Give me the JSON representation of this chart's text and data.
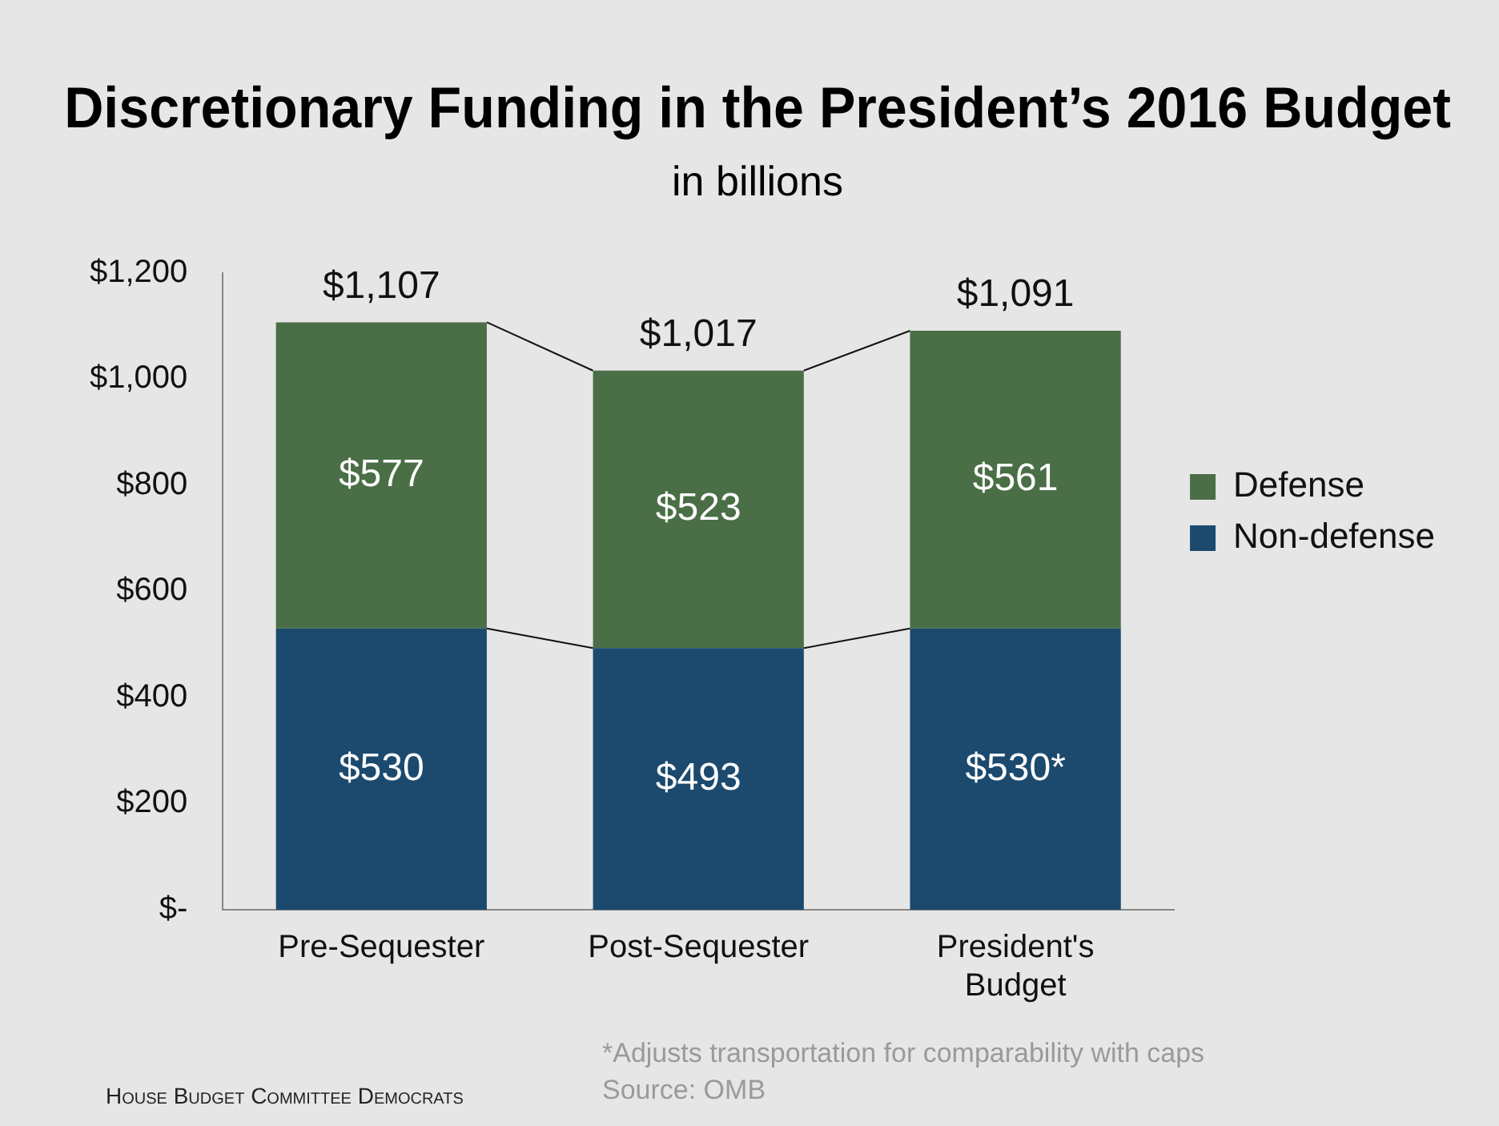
{
  "chart_data": {
    "type": "bar",
    "title": "Discretionary Funding in the President’s 2016 Budget",
    "subtitle": "in billions",
    "categories": [
      "Pre-Sequester",
      "Post-Sequester",
      [
        "President's",
        "Budget"
      ]
    ],
    "stacked": true,
    "series": [
      {
        "name": "Non-defense",
        "color": "#1b4a6e",
        "values": [
          530,
          493,
          530
        ],
        "value_labels": [
          "$530",
          "$493",
          "$530*"
        ]
      },
      {
        "name": "Defense",
        "color": "#4a6e46",
        "values": [
          577,
          523,
          561
        ],
        "value_labels": [
          "$577",
          "$523",
          "$561"
        ]
      }
    ],
    "totals": [
      "$1,107",
      "$1,017",
      "$1,091"
    ],
    "ylim": [
      0,
      1200
    ],
    "yticks": [
      {
        "value": 0,
        "label": "$-"
      },
      {
        "value": 200,
        "label": "$200"
      },
      {
        "value": 400,
        "label": "$400"
      },
      {
        "value": 600,
        "label": "$600"
      },
      {
        "value": 800,
        "label": "$800"
      },
      {
        "value": 1000,
        "label": "$1,000"
      },
      {
        "value": 1200,
        "label": "$1,200"
      }
    ],
    "legend": "right",
    "annotations": [
      "*Adjusts transportation for comparability with caps",
      "Source: OMB",
      "House Budget Committee Democrats"
    ]
  }
}
